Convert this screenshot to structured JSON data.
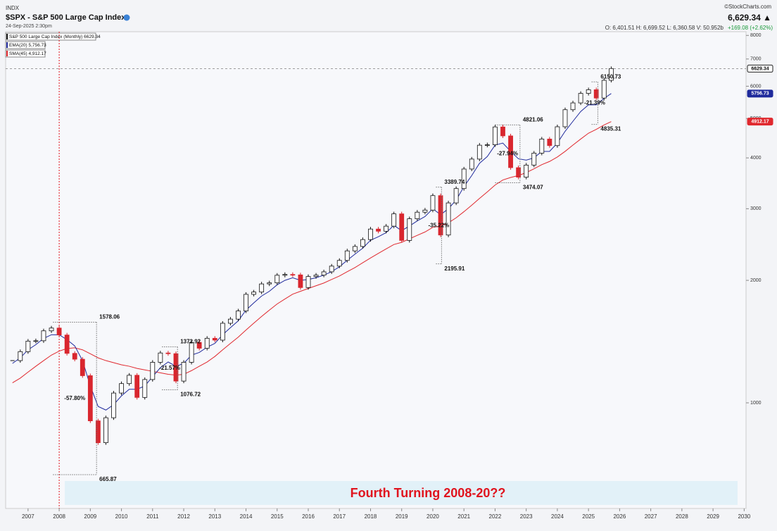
{
  "header": {
    "exchange": "INDX",
    "title": "$SPX - S&P 500 Large Cap Index",
    "timestamp": "24-Sep-2025 2:30pm",
    "source": "©StockCharts.com",
    "last": "6,629.34 ▲",
    "ohlc": "O: 6,401.51   H: 6,699.52   L: 6,360.58   V: 50.952b",
    "change": "+169.08 (+2.62%)"
  },
  "chart_data": {
    "type": "candlestick",
    "log_scale": true,
    "grid": false,
    "xlim": [
      2006.28,
      2030.06
    ],
    "ylim": [
      550,
      8170
    ],
    "xticks": [
      2007,
      2008,
      2009,
      2010,
      2011,
      2012,
      2013,
      2014,
      2015,
      2016,
      2017,
      2018,
      2019,
      2020,
      2021,
      2022,
      2023,
      2024,
      2025,
      2026,
      2027,
      2028,
      2029,
      2030
    ],
    "yticks": [
      1000,
      2000,
      3000,
      4000,
      5000,
      6000,
      7000,
      8000
    ],
    "x": [
      2006.5,
      2006.75,
      2007,
      2007.25,
      2007.5,
      2007.75,
      2008,
      2008.25,
      2008.5,
      2008.75,
      2009,
      2009.25,
      2009.5,
      2009.75,
      2010,
      2010.25,
      2010.5,
      2010.75,
      2011,
      2011.25,
      2011.5,
      2011.75,
      2012,
      2012.25,
      2012.5,
      2012.75,
      2013,
      2013.25,
      2013.5,
      2013.75,
      2014,
      2014.25,
      2014.5,
      2014.75,
      2015,
      2015.25,
      2015.5,
      2015.75,
      2016,
      2016.25,
      2016.5,
      2016.75,
      2017,
      2017.25,
      2017.5,
      2017.75,
      2018,
      2018.25,
      2018.5,
      2018.75,
      2019,
      2019.25,
      2019.5,
      2019.75,
      2020,
      2020.25,
      2020.5,
      2020.75,
      2021,
      2021.25,
      2021.5,
      2021.75,
      2022,
      2022.25,
      2022.5,
      2022.75,
      2023,
      2023.25,
      2023.5,
      2023.75,
      2024,
      2024.25,
      2024.5,
      2024.75,
      2025,
      2025.25,
      2025.5,
      2025.73
    ],
    "series": [
      {
        "name": "S&P 500 Large Cap Index (Monthly) 6629.34",
        "color": "#111111",
        "down_color": "#d9262e",
        "values": [
          1270,
          1336,
          1418,
          1421,
          1503,
          1527,
          1468,
          1323,
          1280,
          1166,
          903,
          798,
          919,
          1057,
          1115,
          1169,
          1031,
          1141,
          1258,
          1326,
          1321,
          1131,
          1258,
          1408,
          1362,
          1441,
          1426,
          1569,
          1606,
          1682,
          1848,
          1872,
          1960,
          1972,
          2059,
          2068,
          2063,
          1920,
          2044,
          2060,
          2099,
          2168,
          2239,
          2363,
          2423,
          2519,
          2674,
          2641,
          2718,
          2914,
          2507,
          2834,
          2942,
          2977,
          3231,
          2585,
          3100,
          3363,
          3756,
          3973,
          4298,
          4308,
          4766,
          4530,
          3785,
          3586,
          3840,
          4109,
          4450,
          4288,
          4770,
          5254,
          5460,
          5762,
          5882,
          5612,
          6205,
          6629.34
        ]
      },
      {
        "name": "EMA(20) 5,756.73",
        "color": "#1f2a9c",
        "values": [
          1250,
          1290,
          1350,
          1390,
          1440,
          1470,
          1470,
          1430,
          1380,
          1270,
          1100,
          980,
          960,
          990,
          1040,
          1080,
          1080,
          1100,
          1160,
          1220,
          1260,
          1230,
          1250,
          1310,
          1330,
          1370,
          1400,
          1470,
          1530,
          1590,
          1690,
          1760,
          1830,
          1880,
          1950,
          2000,
          2030,
          2000,
          2010,
          2030,
          2060,
          2100,
          2160,
          2240,
          2320,
          2400,
          2510,
          2560,
          2620,
          2730,
          2650,
          2720,
          2800,
          2870,
          3000,
          2900,
          3000,
          3150,
          3400,
          3620,
          3880,
          4030,
          4300,
          4350,
          4150,
          3980,
          3950,
          4000,
          4150,
          4150,
          4350,
          4650,
          4920,
          5200,
          5400,
          5400,
          5600,
          5756.73
        ]
      },
      {
        "name": "SMA(45) 4,912.17",
        "color": "#e0282e",
        "values": [
          1120,
          1150,
          1190,
          1230,
          1270,
          1310,
          1340,
          1360,
          1365,
          1350,
          1320,
          1290,
          1270,
          1255,
          1240,
          1230,
          1215,
          1205,
          1195,
          1185,
          1175,
          1170,
          1175,
          1200,
          1230,
          1260,
          1300,
          1350,
          1400,
          1450,
          1510,
          1570,
          1630,
          1690,
          1750,
          1800,
          1850,
          1880,
          1910,
          1940,
          1970,
          2010,
          2050,
          2100,
          2150,
          2210,
          2270,
          2330,
          2390,
          2450,
          2480,
          2530,
          2580,
          2630,
          2700,
          2720,
          2770,
          2850,
          2950,
          3060,
          3180,
          3300,
          3430,
          3530,
          3580,
          3620,
          3680,
          3760,
          3850,
          3920,
          4020,
          4150,
          4300,
          4450,
          4600,
          4700,
          4820,
          4912.17
        ]
      }
    ],
    "drawdowns": [
      {
        "high_x": 2007.8,
        "high": 1578.06,
        "low_x": 2009.2,
        "low": 665.87,
        "change": "-57.80%"
      },
      {
        "high_x": 2011.3,
        "high": 1372.92,
        "low_x": 2011.8,
        "low": 1076.72,
        "change": "-21.57%"
      },
      {
        "high_x": 2020.1,
        "high": 3389.74,
        "low_x": 2020.25,
        "low": 2195.91,
        "change": "-35.22%"
      },
      {
        "high_x": 2022.0,
        "high": 4821.06,
        "low_x": 2022.8,
        "low": 3474.07,
        "change": "-27.94%"
      },
      {
        "high_x": 2025.1,
        "high": 6150.73,
        "low_x": 2025.3,
        "low": 4835.31,
        "change": "-21.39%"
      }
    ],
    "marker_x": 2008,
    "annotation": "Fourth Turning 2008-20??"
  }
}
